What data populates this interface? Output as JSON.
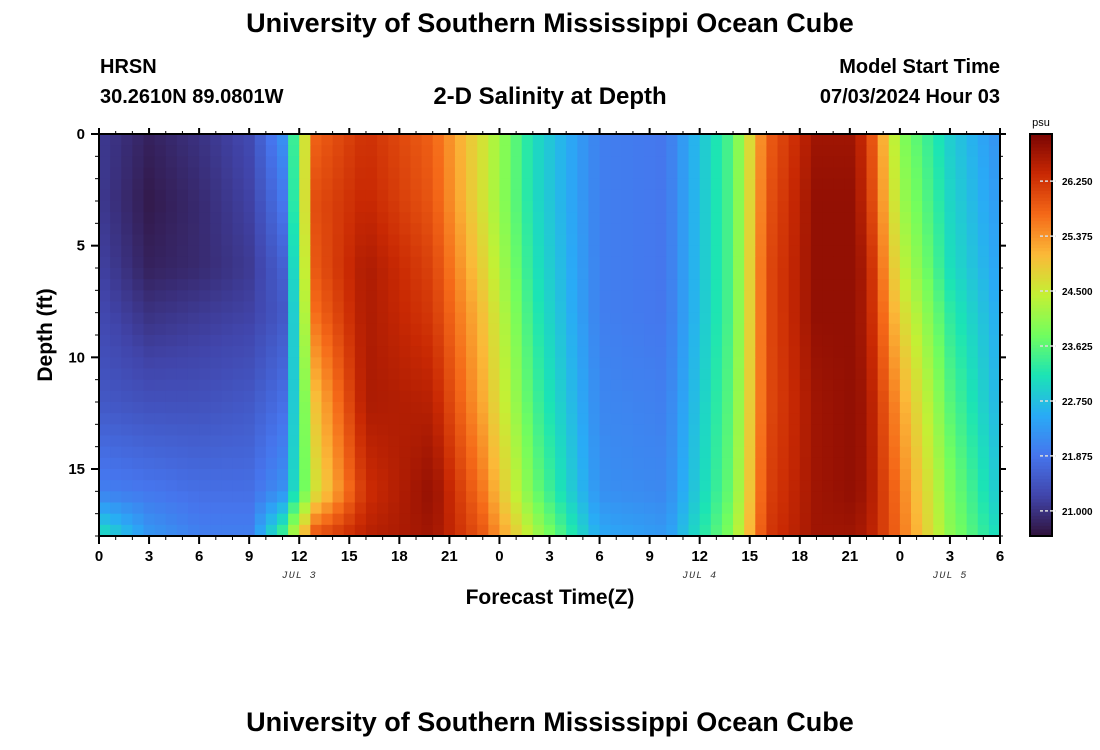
{
  "header": {
    "title": "University of Southern Mississippi Ocean Cube",
    "station": "HRSN",
    "coords": "30.2610N  89.0801W",
    "subtitle": "2-D Salinity at Depth",
    "model_start_label": "Model Start Time",
    "model_start_value": "07/03/2024 Hour 03"
  },
  "footer": {
    "title": "University of Southern Mississippi Ocean Cube"
  },
  "chart_data": {
    "type": "heatmap",
    "xlabel": "Forecast Time(Z)",
    "ylabel": "Depth (ft)",
    "x_tick_labels": [
      "0",
      "3",
      "6",
      "9",
      "12",
      "15",
      "18",
      "21",
      "0",
      "3",
      "6",
      "9",
      "12",
      "15",
      "18",
      "21",
      "0",
      "3",
      "6"
    ],
    "x_date_labels": [
      {
        "label": "JUL 3",
        "at_tick": 4
      },
      {
        "label": "JUL 4",
        "at_tick": 12
      },
      {
        "label": "JUL 5",
        "at_tick": 17
      }
    ],
    "y_ticks": [
      0,
      5,
      10,
      15
    ],
    "ylim": [
      0,
      18
    ],
    "y_inverted": true,
    "colorbar": {
      "unit": "psu",
      "min": 20.6,
      "max": 27.0,
      "tick_labels": [
        "26.250",
        "25.375",
        "24.500",
        "23.625",
        "22.750",
        "21.875",
        "21.000"
      ],
      "tick_values": [
        26.25,
        25.375,
        24.5,
        23.625,
        22.75,
        21.875,
        21.0
      ],
      "colormap": "turbo"
    },
    "x_hours": [
      0,
      3,
      6,
      9,
      11,
      13,
      16,
      20,
      23,
      26,
      30,
      34,
      38,
      40,
      43,
      45,
      46,
      48,
      51,
      54
    ],
    "depth_ft": [
      0,
      3,
      6,
      8,
      12,
      16,
      18
    ],
    "salinity_psu": [
      [
        21.1,
        20.8,
        21.0,
        21.3,
        22.2,
        25.8,
        26.3,
        25.8,
        24.6,
        23.1,
        22.0,
        21.9,
        23.6,
        25.8,
        26.7,
        26.7,
        26.3,
        24.0,
        22.9,
        22.2
      ],
      [
        21.1,
        20.7,
        20.9,
        21.2,
        21.9,
        26.0,
        26.4,
        25.9,
        24.6,
        23.1,
        22.0,
        21.9,
        23.6,
        25.9,
        26.8,
        26.8,
        26.4,
        24.2,
        23.0,
        22.3
      ],
      [
        21.2,
        20.8,
        20.9,
        21.1,
        21.6,
        25.9,
        26.6,
        26.1,
        24.8,
        23.2,
        22.0,
        21.9,
        23.6,
        26.0,
        26.8,
        26.8,
        26.6,
        24.5,
        23.1,
        22.4
      ],
      [
        21.3,
        21.0,
        21.1,
        21.2,
        21.5,
        25.7,
        26.6,
        26.2,
        25.0,
        23.3,
        22.0,
        21.9,
        23.6,
        26.0,
        26.8,
        26.8,
        26.6,
        24.8,
        23.3,
        22.5
      ],
      [
        21.5,
        21.4,
        21.4,
        21.5,
        21.8,
        25.0,
        26.6,
        26.5,
        25.2,
        23.5,
        22.1,
        22.0,
        23.7,
        26.0,
        26.7,
        26.8,
        26.7,
        25.3,
        23.6,
        22.6
      ],
      [
        22.0,
        21.9,
        21.8,
        21.8,
        22.2,
        24.6,
        26.3,
        26.8,
        25.6,
        23.8,
        22.2,
        22.1,
        23.8,
        26.1,
        26.7,
        26.8,
        26.7,
        25.6,
        23.9,
        22.8
      ],
      [
        23.2,
        22.3,
        22.0,
        22.0,
        23.5,
        26.0,
        26.5,
        26.7,
        25.9,
        24.3,
        22.5,
        22.3,
        24.0,
        26.2,
        26.7,
        26.7,
        26.6,
        25.7,
        24.0,
        23.0
      ]
    ]
  }
}
